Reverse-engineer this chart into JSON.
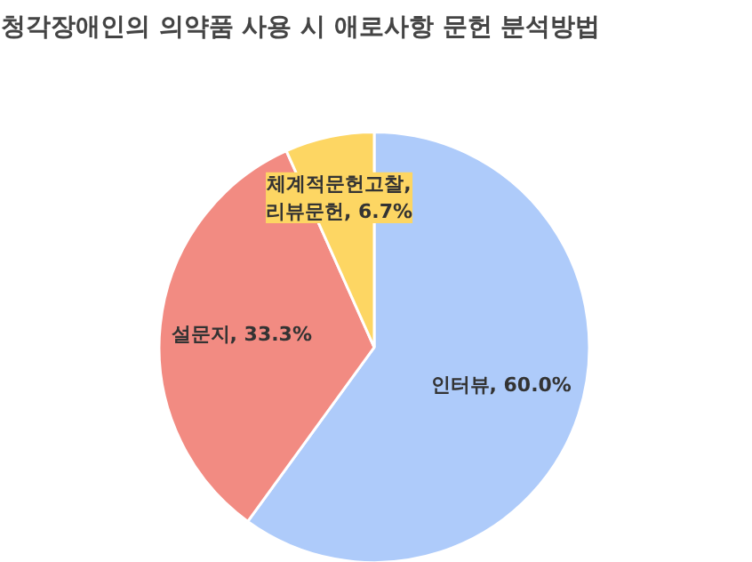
{
  "chart_data": {
    "type": "pie",
    "title": "청각장애인의 의약품 사용 시 애로사항 문헌 분석방법",
    "categories": [
      "인터뷰",
      "설문지",
      "체계적문헌고찰, 리뷰문헌"
    ],
    "values": [
      60.0,
      33.3,
      6.7
    ],
    "colors": [
      "#aecbfa",
      "#f28b82",
      "#fdd663"
    ],
    "value_labels": [
      "60.0%",
      "33.3%",
      "6.7%"
    ],
    "legend": false
  }
}
